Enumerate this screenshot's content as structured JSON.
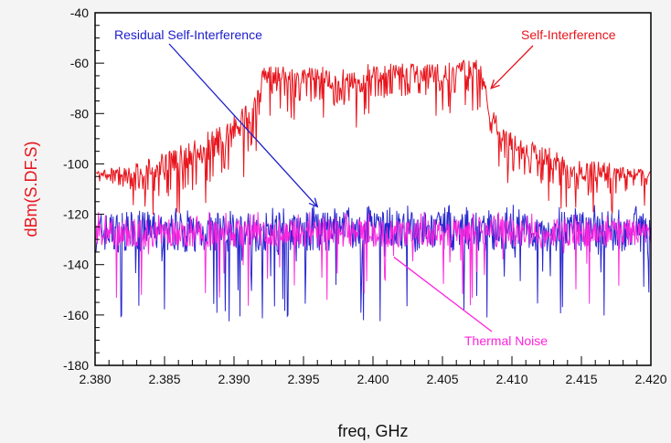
{
  "chart_data": {
    "type": "line",
    "xlabel": "freq, GHz",
    "ylabel": "dBm(S.DF.S)",
    "xlim": [
      2.38,
      2.42
    ],
    "ylim": [
      -180,
      -40
    ],
    "x_ticks": [
      "2.380",
      "2.385",
      "2.390",
      "2.395",
      "2.400",
      "2.405",
      "2.410",
      "2.415",
      "2.420"
    ],
    "y_ticks": [
      "-40",
      "-60",
      "-80",
      "-100",
      "-120",
      "-140",
      "-160",
      "-180"
    ],
    "grid": false,
    "colors": {
      "self_interference": "#e8141c",
      "residual": "#1c1ccc",
      "thermal": "#ff22dd",
      "ylabel": "#e8141c"
    },
    "series": [
      {
        "name": "Self-Interference",
        "color": "#e8141c",
        "envelope": {
          "x": [
            2.38,
            2.3825,
            2.385,
            2.3875,
            2.39,
            2.391,
            2.3917,
            2.392,
            2.395,
            2.3985,
            2.3992,
            2.3995,
            2.4,
            2.405,
            2.4078,
            2.4083,
            2.409,
            2.41,
            2.415,
            2.4175,
            2.42
          ],
          "top": [
            -103,
            -100,
            -95,
            -89,
            -81,
            -76,
            -70,
            -61,
            -61,
            -62,
            -64,
            -60,
            -60,
            -60,
            -58,
            -75,
            -82,
            -88,
            -98,
            -100,
            -103
          ],
          "bottom": [
            -107,
            -110,
            -114,
            -110,
            -102,
            -96,
            -88,
            -73,
            -75,
            -78,
            -82,
            -72,
            -74,
            -73,
            -71,
            -86,
            -96,
            -104,
            -113,
            -112,
            -108
          ]
        }
      },
      {
        "name": "Residual Self-Interference",
        "color": "#1c1ccc",
        "band": {
          "x": [
            2.38,
            2.42
          ],
          "top": -119,
          "bottom": -135,
          "dip_min": -163
        }
      },
      {
        "name": "Thermal Noise",
        "color": "#ff22dd",
        "band": {
          "x": [
            2.38,
            2.42
          ],
          "top": -122,
          "bottom": -133,
          "dip_min": -158
        }
      }
    ],
    "annotations": [
      {
        "text": "Residual Self-Interference",
        "color": "#1c1ccc",
        "points_to": {
          "x": 2.396,
          "y": -117
        }
      },
      {
        "text": "Self-Interference",
        "color": "#e8141c",
        "points_to": {
          "x": 2.4085,
          "y": -70
        }
      },
      {
        "text": "Thermal Noise",
        "color": "#ff22dd",
        "points_to": {
          "x": 2.4015,
          "y": -137
        }
      }
    ]
  }
}
